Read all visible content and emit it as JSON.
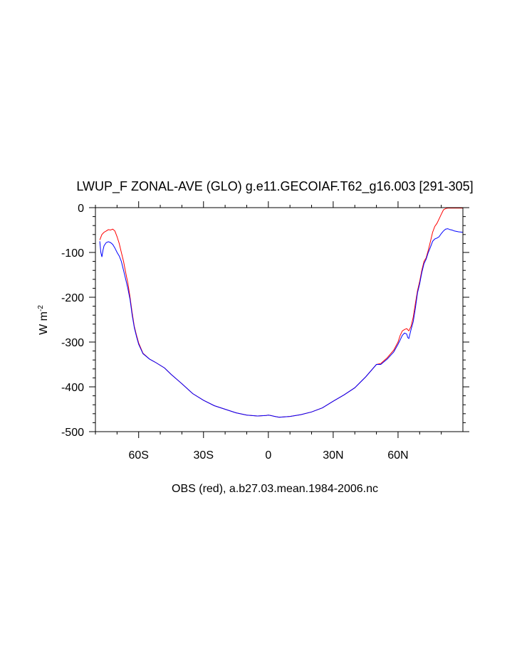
{
  "chart_data": {
    "type": "line",
    "title": "LWUP_F ZONAL-AVE (GLO) g.e11.GECOIAF.T62_g16.003 [291-305]",
    "xlabel": "OBS (red), a.b27.03.mean.1984-2006.nc",
    "ylabel_main": "W m",
    "ylabel_sup": "-2",
    "xlim": [
      -80,
      90
    ],
    "ylim": [
      -500,
      0
    ],
    "x_ticks": [
      {
        "value": -60,
        "label": "60S"
      },
      {
        "value": -30,
        "label": "30S"
      },
      {
        "value": 0,
        "label": "0"
      },
      {
        "value": 30,
        "label": "30N"
      },
      {
        "value": 60,
        "label": "60N"
      }
    ],
    "y_ticks": [
      {
        "value": 0,
        "label": "0"
      },
      {
        "value": -100,
        "label": "-100"
      },
      {
        "value": -200,
        "label": "-200"
      },
      {
        "value": -300,
        "label": "-300"
      },
      {
        "value": -400,
        "label": "-400"
      },
      {
        "value": -500,
        "label": "-500"
      }
    ],
    "grid": false,
    "series": [
      {
        "color": "#ff0000",
        "x": [
          -78,
          -77,
          -76,
          -75,
          -74,
          -73,
          -72,
          -71,
          -70,
          -69,
          -68,
          -67,
          -66,
          -65,
          -64,
          -63,
          -62,
          -61,
          -60,
          -58,
          -55,
          -52,
          -48,
          -45,
          -40,
          -35,
          -30,
          -25,
          -20,
          -15,
          -10,
          -5,
          -1,
          0,
          1,
          3,
          5,
          10,
          15,
          20,
          25,
          30,
          35,
          40,
          45,
          50,
          52,
          55,
          58,
          60,
          61,
          62,
          63,
          64,
          65,
          66,
          67,
          68,
          69,
          70,
          71,
          72,
          73,
          74,
          75,
          76,
          77,
          78,
          79,
          80,
          81,
          82,
          83,
          85,
          88,
          90
        ],
        "y": [
          -72,
          -60,
          -55,
          -52,
          -49,
          -50,
          -48,
          -52,
          -65,
          -80,
          -100,
          -120,
          -145,
          -168,
          -200,
          -235,
          -265,
          -285,
          -302,
          -325,
          -338,
          -346,
          -358,
          -372,
          -393,
          -415,
          -430,
          -442,
          -450,
          -458,
          -463,
          -465,
          -464,
          -463,
          -464,
          -466,
          -468,
          -466,
          -462,
          -456,
          -447,
          -432,
          -418,
          -402,
          -378,
          -350,
          -348,
          -335,
          -318,
          -300,
          -285,
          -275,
          -272,
          -270,
          -275,
          -265,
          -245,
          -215,
          -185,
          -165,
          -140,
          -120,
          -112,
          -95,
          -75,
          -55,
          -42,
          -35,
          -25,
          -15,
          -5,
          -2,
          -1,
          -1,
          -1,
          -1
        ]
      },
      {
        "color": "#0000ff",
        "x": [
          -78,
          -77.5,
          -77,
          -76.5,
          -76,
          -75,
          -74,
          -73,
          -72,
          -71,
          -70,
          -69,
          -68,
          -67,
          -66,
          -65,
          -64,
          -63,
          -62,
          -61,
          -60,
          -58,
          -55,
          -52,
          -48,
          -45,
          -40,
          -35,
          -30,
          -25,
          -20,
          -15,
          -10,
          -5,
          -1,
          0,
          1,
          3,
          5,
          10,
          15,
          20,
          25,
          30,
          35,
          40,
          45,
          50,
          52,
          55,
          58,
          60,
          61,
          62,
          63,
          64,
          64.5,
          65,
          66,
          67,
          68,
          69,
          70,
          71,
          72,
          73,
          74,
          75,
          76,
          77,
          78,
          79,
          80,
          81,
          82,
          83,
          84,
          85,
          86,
          88,
          90
        ],
        "y": [
          -75,
          -100,
          -110,
          -95,
          -85,
          -78,
          -76,
          -78,
          -82,
          -90,
          -100,
          -108,
          -120,
          -140,
          -160,
          -180,
          -205,
          -240,
          -268,
          -288,
          -305,
          -326,
          -338,
          -346,
          -358,
          -372,
          -393,
          -415,
          -430,
          -442,
          -450,
          -458,
          -463,
          -465,
          -464,
          -463,
          -464,
          -466,
          -468,
          -466,
          -462,
          -456,
          -447,
          -432,
          -418,
          -402,
          -378,
          -350,
          -350,
          -338,
          -322,
          -305,
          -295,
          -285,
          -280,
          -282,
          -290,
          -292,
          -272,
          -255,
          -225,
          -190,
          -170,
          -145,
          -125,
          -115,
          -100,
          -88,
          -75,
          -70,
          -68,
          -65,
          -58,
          -52,
          -48,
          -47,
          -49,
          -50,
          -52,
          -54,
          -55
        ]
      }
    ]
  }
}
